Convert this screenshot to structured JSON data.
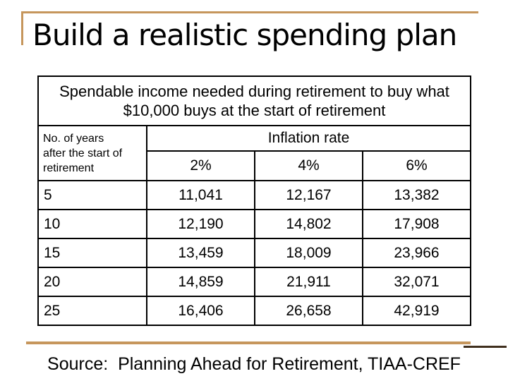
{
  "slide": {
    "title": "Build a realistic spending plan",
    "background_color": "#FFFFFF",
    "accent_color": "#C6965C",
    "accent_dark_color": "#3F2F1E",
    "text_color": "#000000"
  },
  "table": {
    "caption": "Spendable income needed during retirement to buy what\n$10,000 buys at the start of retirement",
    "row_axis_header": "No. of years\nafter the start of\nretirement",
    "column_group_header": "Inflation rate",
    "column_headers": [
      "2%",
      "4%",
      "6%"
    ],
    "rows": [
      {
        "label": "5",
        "values": [
          "11,041",
          "12,167",
          "13,382"
        ]
      },
      {
        "label": "10",
        "values": [
          "12,190",
          "14,802",
          "17,908"
        ]
      },
      {
        "label": "15",
        "values": [
          "13,459",
          "18,009",
          "23,966"
        ]
      },
      {
        "label": "20",
        "values": [
          "14,859",
          "21,911",
          "32,071"
        ]
      },
      {
        "label": "25",
        "values": [
          "16,406",
          "26,658",
          "42,919"
        ]
      }
    ]
  },
  "footer": {
    "source": "Source:  Planning Ahead for Retirement, TIAA-CREF"
  }
}
